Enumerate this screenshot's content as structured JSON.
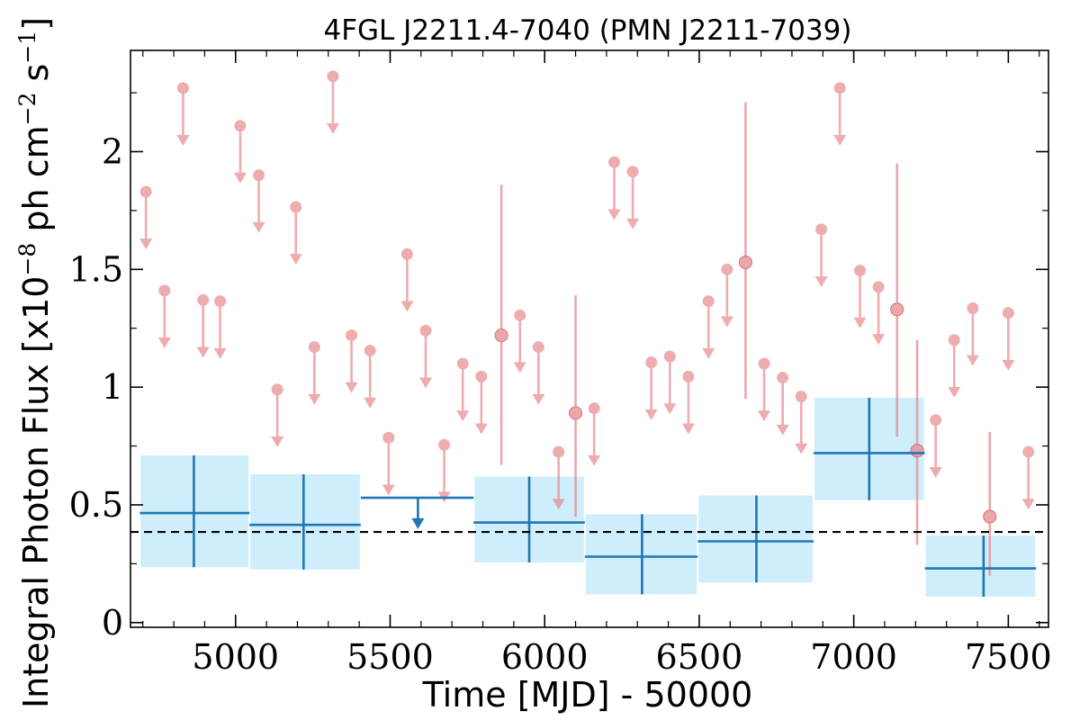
{
  "chart_data": {
    "type": "scatter",
    "title": "4FGL J2211.4-7040 (PMN J2211-7039)",
    "xlabel": "Time [MJD] - 50000",
    "ylabel": {
      "prefix": "Integral Photon Flux [x10",
      "exp1": "−8",
      "mid": " ph cm",
      "exp2": "−2",
      "mid2": " s",
      "exp3": "−1",
      "suffix": "]"
    },
    "xlim": [
      4660,
      7630
    ],
    "ylim": [
      -0.02,
      2.43
    ],
    "xticks": [
      {
        "value": 5000,
        "label": "5000"
      },
      {
        "value": 5500,
        "label": "5500"
      },
      {
        "value": 6000,
        "label": "6000"
      },
      {
        "value": 6500,
        "label": "6500"
      },
      {
        "value": 7000,
        "label": "7000"
      },
      {
        "value": 7500,
        "label": "7500"
      }
    ],
    "yticks": [
      {
        "value": 0,
        "label": "0"
      },
      {
        "value": 0.5,
        "label": "0.5"
      },
      {
        "value": 1,
        "label": "1"
      },
      {
        "value": 1.5,
        "label": "1.5"
      },
      {
        "value": 2,
        "label": "2"
      }
    ],
    "mean_flux": 0.385,
    "colors": {
      "short_bins": "#e8898e",
      "long_bins": "#1f77b4",
      "long_bins_fill": "#cfeefc",
      "mean_line": "#000000"
    },
    "short_bins_upper_limits": [
      {
        "x": 4710,
        "y": 1.83
      },
      {
        "x": 4770,
        "y": 1.41
      },
      {
        "x": 4830,
        "y": 2.27
      },
      {
        "x": 4895,
        "y": 1.37
      },
      {
        "x": 4950,
        "y": 1.365
      },
      {
        "x": 5015,
        "y": 2.11
      },
      {
        "x": 5075,
        "y": 1.9
      },
      {
        "x": 5135,
        "y": 0.99
      },
      {
        "x": 5195,
        "y": 1.765
      },
      {
        "x": 5255,
        "y": 1.17
      },
      {
        "x": 5315,
        "y": 2.32
      },
      {
        "x": 5375,
        "y": 1.22
      },
      {
        "x": 5435,
        "y": 1.155
      },
      {
        "x": 5495,
        "y": 0.785
      },
      {
        "x": 5555,
        "y": 1.565
      },
      {
        "x": 5615,
        "y": 1.24
      },
      {
        "x": 5675,
        "y": 0.755
      },
      {
        "x": 5735,
        "y": 1.1
      },
      {
        "x": 5795,
        "y": 1.045
      },
      {
        "x": 5920,
        "y": 1.305
      },
      {
        "x": 5980,
        "y": 1.17
      },
      {
        "x": 6045,
        "y": 0.725
      },
      {
        "x": 6160,
        "y": 0.91
      },
      {
        "x": 6225,
        "y": 1.955
      },
      {
        "x": 6285,
        "y": 1.915
      },
      {
        "x": 6345,
        "y": 1.105
      },
      {
        "x": 6405,
        "y": 1.13
      },
      {
        "x": 6465,
        "y": 1.045
      },
      {
        "x": 6530,
        "y": 1.365
      },
      {
        "x": 6590,
        "y": 1.5
      },
      {
        "x": 6710,
        "y": 1.1
      },
      {
        "x": 6770,
        "y": 1.04
      },
      {
        "x": 6830,
        "y": 0.96
      },
      {
        "x": 6895,
        "y": 1.67
      },
      {
        "x": 6955,
        "y": 2.27
      },
      {
        "x": 7020,
        "y": 1.495
      },
      {
        "x": 7080,
        "y": 1.425
      },
      {
        "x": 7265,
        "y": 0.86
      },
      {
        "x": 7325,
        "y": 1.2
      },
      {
        "x": 7385,
        "y": 1.335
      },
      {
        "x": 7500,
        "y": 1.315
      },
      {
        "x": 7565,
        "y": 0.725
      }
    ],
    "short_bins_detections": [
      {
        "x": 5860,
        "y": 1.22,
        "ylow": 0.67,
        "yhigh": 1.86
      },
      {
        "x": 6100,
        "y": 0.89,
        "ylow": 0.45,
        "yhigh": 1.39
      },
      {
        "x": 6650,
        "y": 1.53,
        "ylow": 0.95,
        "yhigh": 2.21
      },
      {
        "x": 7140,
        "y": 1.33,
        "ylow": 0.79,
        "yhigh": 1.95
      },
      {
        "x": 7205,
        "y": 0.73,
        "ylow": 0.33,
        "yhigh": 1.2
      },
      {
        "x": 7440,
        "y": 0.45,
        "ylow": 0.2,
        "yhigh": 0.81
      }
    ],
    "long_bins": [
      {
        "x": 4865,
        "xlow": 4690,
        "xhigh": 5045,
        "y": 0.465,
        "ylow": 0.235,
        "yhigh": 0.71
      },
      {
        "x": 5220,
        "xlow": 5045,
        "xhigh": 5405,
        "y": 0.415,
        "ylow": 0.225,
        "yhigh": 0.63
      },
      {
        "x": 5950,
        "xlow": 5770,
        "xhigh": 6130,
        "y": 0.425,
        "ylow": 0.255,
        "yhigh": 0.62
      },
      {
        "x": 6315,
        "xlow": 6130,
        "xhigh": 6495,
        "y": 0.28,
        "ylow": 0.12,
        "yhigh": 0.46
      },
      {
        "x": 6685,
        "xlow": 6495,
        "xhigh": 6870,
        "y": 0.345,
        "ylow": 0.17,
        "yhigh": 0.54
      },
      {
        "x": 7050,
        "xlow": 6870,
        "xhigh": 7230,
        "y": 0.72,
        "ylow": 0.52,
        "yhigh": 0.955
      },
      {
        "x": 7420,
        "xlow": 7230,
        "xhigh": 7590,
        "y": 0.23,
        "ylow": 0.11,
        "yhigh": 0.37
      }
    ],
    "long_bins_upper_limits": [
      {
        "x": 5590,
        "xlow": 5405,
        "xhigh": 5770,
        "y": 0.53
      }
    ]
  }
}
